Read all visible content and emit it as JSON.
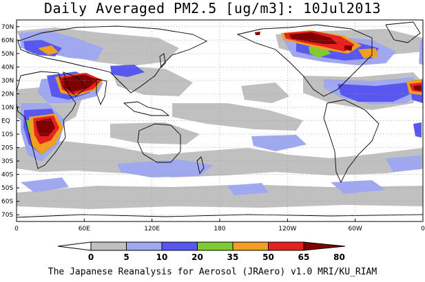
{
  "title": "Daily Averaged PM2.5 [ug/m3]: 10Jul2013",
  "footer": "The Japanese Reanalysis for Aerosol (JRAero) v1.0 MRI/KU_RIAM",
  "lat_labels": [
    "70N",
    "60N",
    "50N",
    "40N",
    "30N",
    "20N",
    "10N",
    "EQ",
    "10S",
    "20S",
    "30S",
    "40S",
    "50S",
    "60S",
    "70S"
  ],
  "lon_labels": [
    "0",
    "60E",
    "120E",
    "180",
    "120W",
    "60W",
    "0"
  ],
  "colorbar": {
    "levels": [
      "0",
      "5",
      "10",
      "20",
      "35",
      "50",
      "65",
      "80"
    ],
    "colors": [
      "#ffffff",
      "#c0c0c0",
      "#a0a8f0",
      "#5858f0",
      "#80cc30",
      "#f0a020",
      "#e82020",
      "#800000"
    ]
  },
  "map_data": {
    "projection": "equirectangular",
    "lon_range": [
      0,
      360
    ],
    "lat_range": [
      -75,
      75
    ],
    "units": "ug/m3"
  }
}
